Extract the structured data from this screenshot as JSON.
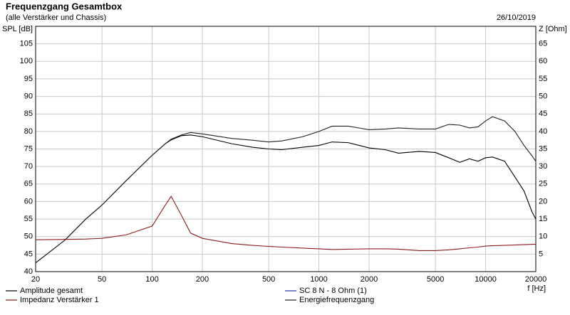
{
  "chart_data": {
    "type": "line",
    "title": "Frequenzgang Gesamtbox",
    "subtitle": "(alle Verstärker und Chassis)",
    "date": "26/10/2019",
    "ylabel": "SPL [dB]",
    "y2label": "Z [Ohm]",
    "xlabel": "f [Hz]",
    "log_x": true,
    "grid": true,
    "x": [
      20,
      30,
      40,
      50,
      70,
      100,
      120,
      130,
      150,
      170,
      200,
      300,
      400,
      500,
      600,
      800,
      1000,
      1200,
      1500,
      2000,
      2500,
      3000,
      4000,
      5000,
      6000,
      7000,
      8000,
      9000,
      10000,
      11000,
      13000,
      15000,
      17000,
      19000,
      20000
    ],
    "xlim": [
      20,
      20000
    ],
    "xticks": [
      20,
      50,
      100,
      200,
      500,
      1000,
      2000,
      5000,
      10000,
      20000
    ],
    "ylim": [
      40,
      110
    ],
    "yticks": [
      40,
      45,
      50,
      55,
      60,
      65,
      70,
      75,
      80,
      85,
      90,
      95,
      100,
      105
    ],
    "y2lim": [
      0,
      70
    ],
    "y2ticks": [
      5,
      10,
      15,
      20,
      25,
      30,
      35,
      40,
      45,
      50,
      55,
      60,
      65
    ],
    "series": [
      {
        "name": "Amplitude gesamt",
        "color": "#000000",
        "values": [
          42.5,
          49,
          55,
          59,
          66,
          73.2,
          76.5,
          77.6,
          78.8,
          79,
          78.5,
          76.5,
          75.5,
          75,
          74.8,
          75.5,
          76,
          77,
          76.8,
          75.3,
          74.8,
          73.8,
          74.3,
          74,
          72.5,
          71.2,
          72.2,
          71.5,
          72.5,
          72.7,
          71.5,
          67,
          63,
          57,
          55
        ]
      },
      {
        "name": "Impedanz Verstärker 1",
        "color": "#8b1a1a",
        "axis": "y2",
        "values": [
          9.1,
          9.2,
          9.3,
          9.5,
          10.5,
          13,
          19,
          21.5,
          16,
          11,
          9.5,
          8,
          7.5,
          7.2,
          7,
          6.7,
          6.5,
          6.3,
          6.4,
          6.5,
          6.5,
          6.4,
          6,
          6,
          6.2,
          6.5,
          6.8,
          7,
          7.3,
          7.4,
          7.5,
          7.6,
          7.7,
          7.8,
          7.8
        ]
      },
      {
        "name": "SC 8 N - 8 Ohm (1)",
        "color": "#1f2fb0",
        "axis": "y2",
        "values": [
          null,
          null,
          null,
          null,
          null,
          null,
          null,
          null,
          null,
          null,
          null,
          null,
          null,
          null,
          null,
          null,
          null,
          null,
          null,
          null,
          null,
          null,
          null,
          null,
          null,
          null,
          null,
          null,
          null,
          null,
          null,
          null,
          null,
          null,
          null
        ]
      },
      {
        "name": "Energiefrequenzgang",
        "color": "#202020",
        "values": [
          42.5,
          49,
          55,
          59,
          66,
          73.2,
          76.5,
          77.8,
          79,
          79.7,
          79.3,
          78,
          77.5,
          77,
          77.3,
          78.5,
          80,
          81.5,
          81.5,
          80.5,
          80.7,
          81,
          80.7,
          80.7,
          82,
          81.8,
          81,
          81.3,
          83,
          84.2,
          83,
          80,
          76,
          73,
          71.5
        ]
      }
    ]
  }
}
